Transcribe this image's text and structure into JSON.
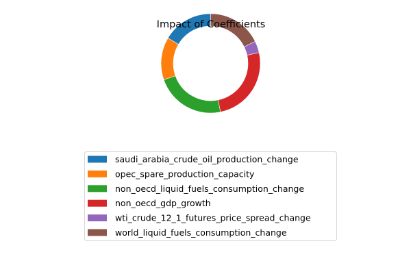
{
  "chart_data": {
    "type": "pie",
    "variant": "donut",
    "title": "Impact of Coefficients",
    "legend_position": "below",
    "slices": [
      {
        "label": "saudi_arabia_crude_oil_production_change",
        "value": 16.5,
        "color": "#1f77b4"
      },
      {
        "label": "opec_spare_production_capacity",
        "value": 13.9,
        "color": "#ff7f0e"
      },
      {
        "label": "non_oecd_liquid_fuels_consumption_change",
        "value": 22.8,
        "color": "#2ca02c"
      },
      {
        "label": "non_oecd_gdp_growth",
        "value": 25.3,
        "color": "#d62728"
      },
      {
        "label": "wti_crude_12_1_futures_price_spread_change",
        "value": 3.8,
        "color": "#9467bd"
      },
      {
        "label": "world_liquid_fuels_consumption_change",
        "value": 17.7,
        "color": "#8c564b"
      }
    ]
  }
}
